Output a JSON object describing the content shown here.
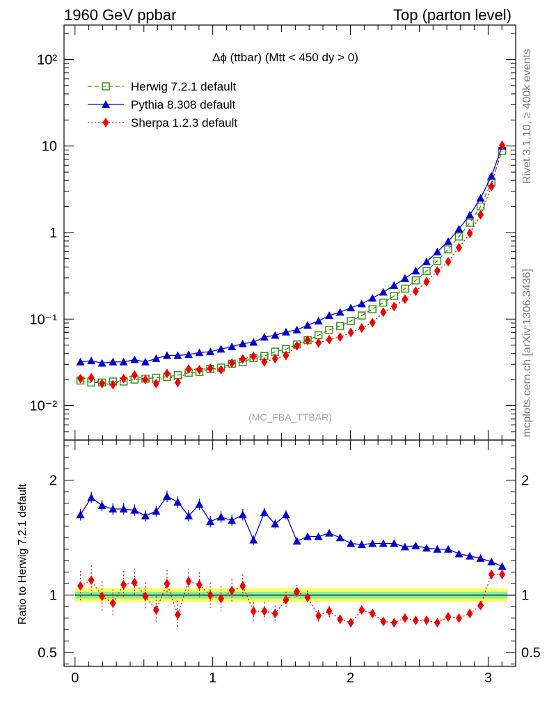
{
  "header": {
    "left": "1960 GeV ppbar",
    "right": "Top (parton level)"
  },
  "side_text": {
    "rivet": "Rivet 3.1.10, ≥ 400k events",
    "mcplots": "mcplots.cern.ch [arXiv:1306.3436]"
  },
  "main_title": "Δϕ (ttbar) (Mtt < 450 dy > 0)",
  "analysis_tag": "(MC_FBA_TTBAR)",
  "ratio_ylabel": "Ratio to Herwig 7.2.1 default",
  "colors": {
    "herwig": "#3a8f1c",
    "pythia": "#0000cc",
    "sherpa": "#ee0000",
    "band_inner": "#88ee99",
    "band_outer": "#ffff66"
  },
  "chart_data": [
    {
      "type": "scatter",
      "panel": "main",
      "yscale": "log",
      "xlim": [
        -0.08,
        3.2
      ],
      "ylim": [
        0.004,
        250
      ],
      "yticks": [
        {
          "v": 0.01,
          "label": "10⁻²"
        },
        {
          "v": 0.1,
          "label": "10⁻¹"
        },
        {
          "v": 1,
          "label": "1"
        },
        {
          "v": 10,
          "label": "10"
        },
        {
          "v": 100,
          "label": "10²"
        }
      ],
      "x": [
        0.039,
        0.118,
        0.196,
        0.275,
        0.353,
        0.432,
        0.511,
        0.589,
        0.668,
        0.746,
        0.825,
        0.903,
        0.982,
        1.06,
        1.139,
        1.218,
        1.296,
        1.375,
        1.453,
        1.532,
        1.611,
        1.689,
        1.768,
        1.846,
        1.925,
        2.003,
        2.082,
        2.16,
        2.239,
        2.317,
        2.396,
        2.474,
        2.553,
        2.631,
        2.71,
        2.788,
        2.867,
        2.945,
        3.024,
        3.102
      ],
      "series": [
        {
          "name": "Herwig 7.2.1 default",
          "color_key": "herwig",
          "marker": "open-square",
          "dash": "6,4",
          "values": [
            0.0195,
            0.0185,
            0.0185,
            0.019,
            0.019,
            0.02,
            0.0205,
            0.021,
            0.0215,
            0.0225,
            0.024,
            0.0245,
            0.0265,
            0.0275,
            0.0305,
            0.032,
            0.0355,
            0.0375,
            0.042,
            0.045,
            0.051,
            0.057,
            0.065,
            0.075,
            0.083,
            0.095,
            0.11,
            0.13,
            0.155,
            0.185,
            0.225,
            0.28,
            0.36,
            0.47,
            0.64,
            0.9,
            1.3,
            2.0,
            3.8,
            8.8
          ]
        },
        {
          "name": "Pythia 8.308 default",
          "color_key": "pythia",
          "marker": "triangle",
          "dash": "",
          "values": [
            0.032,
            0.033,
            0.031,
            0.032,
            0.032,
            0.034,
            0.032,
            0.035,
            0.038,
            0.038,
            0.039,
            0.041,
            0.042,
            0.045,
            0.048,
            0.052,
            0.054,
            0.062,
            0.065,
            0.071,
            0.075,
            0.085,
            0.095,
            0.11,
            0.12,
            0.135,
            0.15,
            0.175,
            0.205,
            0.245,
            0.295,
            0.36,
            0.46,
            0.6,
            0.79,
            1.1,
            1.6,
            2.5,
            4.5,
            10.0
          ]
        },
        {
          "name": "Sherpa 1.2.3 default",
          "color_key": "sherpa",
          "marker": "diamond",
          "dash": "2,3",
          "values": [
            0.0205,
            0.021,
            0.018,
            0.0175,
            0.0205,
            0.0225,
            0.02,
            0.018,
            0.0235,
            0.0185,
            0.0265,
            0.026,
            0.027,
            0.026,
            0.031,
            0.0345,
            0.037,
            0.032,
            0.035,
            0.038,
            0.049,
            0.057,
            0.053,
            0.058,
            0.062,
            0.07,
            0.079,
            0.091,
            0.12,
            0.14,
            0.17,
            0.21,
            0.27,
            0.36,
            0.46,
            0.67,
            0.98,
            1.6,
            3.4,
            10.2
          ]
        }
      ]
    },
    {
      "type": "scatter",
      "panel": "ratio",
      "xlim": [
        -0.08,
        3.2
      ],
      "ylim": [
        0.38,
        2.35
      ],
      "xticks": [
        0,
        1,
        2,
        3
      ],
      "yticks": [
        0.5,
        1,
        2
      ],
      "x": [
        0.039,
        0.118,
        0.196,
        0.275,
        0.353,
        0.432,
        0.511,
        0.589,
        0.668,
        0.746,
        0.825,
        0.903,
        0.982,
        1.06,
        1.139,
        1.218,
        1.296,
        1.375,
        1.453,
        1.532,
        1.611,
        1.689,
        1.768,
        1.846,
        1.925,
        2.003,
        2.082,
        2.16,
        2.239,
        2.317,
        2.396,
        2.474,
        2.553,
        2.631,
        2.71,
        2.788,
        2.867,
        2.945,
        3.024,
        3.102
      ],
      "band": {
        "x": [
          0.0,
          3.14
        ],
        "inner": [
          0.97,
          1.03
        ],
        "outer": [
          0.94,
          1.06
        ]
      },
      "series": [
        {
          "name": "Pythia 8.308 default",
          "color_key": "pythia",
          "marker": "triangle",
          "dash": "",
          "values": [
            1.7,
            1.85,
            1.78,
            1.75,
            1.75,
            1.74,
            1.69,
            1.73,
            1.86,
            1.81,
            1.69,
            1.79,
            1.64,
            1.68,
            1.65,
            1.7,
            1.48,
            1.72,
            1.62,
            1.7,
            1.47,
            1.51,
            1.51,
            1.54,
            1.5,
            1.45,
            1.44,
            1.45,
            1.45,
            1.45,
            1.42,
            1.43,
            1.41,
            1.4,
            1.4,
            1.36,
            1.34,
            1.32,
            1.29,
            1.25
          ],
          "err": [
            0.05,
            0.05,
            0.05,
            0.05,
            0.05,
            0.05,
            0.05,
            0.05,
            0.05,
            0.05,
            0.05,
            0.05,
            0.05,
            0.05,
            0.05,
            0.05,
            0.04,
            0.04,
            0.04,
            0.04,
            0.03,
            0.03,
            0.03,
            0.03,
            0.03,
            0.02,
            0.02,
            0.02,
            0.02,
            0.02,
            0.02,
            0.02,
            0.02,
            0.02,
            0.02,
            0.02,
            0.02,
            0.01,
            0.01,
            0.01
          ]
        },
        {
          "name": "Sherpa 1.2.3 default",
          "color_key": "sherpa",
          "marker": "diamond",
          "dash": "2,3",
          "values": [
            1.08,
            1.13,
            0.99,
            0.93,
            1.09,
            1.11,
            0.99,
            0.87,
            1.1,
            0.83,
            1.12,
            1.09,
            1.0,
            0.97,
            1.04,
            1.08,
            0.86,
            0.86,
            0.84,
            0.96,
            1.03,
            0.98,
            0.82,
            0.86,
            0.79,
            0.76,
            0.87,
            0.84,
            0.77,
            0.76,
            0.8,
            0.78,
            0.78,
            0.76,
            0.81,
            0.8,
            0.84,
            0.91,
            1.18,
            1.18
          ],
          "err": [
            0.13,
            0.13,
            0.13,
            0.12,
            0.12,
            0.12,
            0.12,
            0.12,
            0.12,
            0.12,
            0.11,
            0.11,
            0.11,
            0.11,
            0.1,
            0.1,
            0.08,
            0.08,
            0.07,
            0.07,
            0.06,
            0.06,
            0.05,
            0.05,
            0.04,
            0.04,
            0.04,
            0.03,
            0.03,
            0.03,
            0.02,
            0.02,
            0.02,
            0.02,
            0.02,
            0.02,
            0.02,
            0.01,
            0.01,
            0.01
          ]
        }
      ]
    }
  ]
}
